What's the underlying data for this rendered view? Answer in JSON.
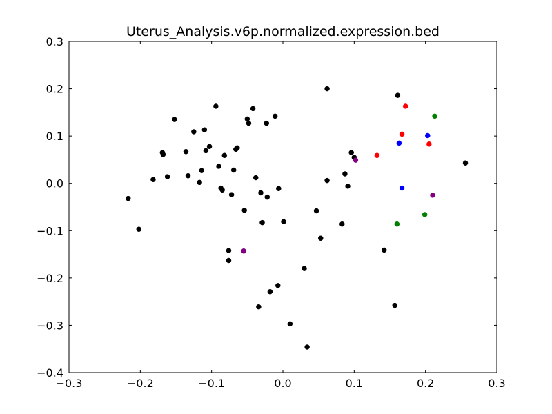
{
  "chart_data": {
    "type": "scatter",
    "title": "Uterus_Analysis.v6p.normalized.expression.bed",
    "xlabel": "",
    "ylabel": "",
    "xlim": [
      -0.3,
      0.3
    ],
    "ylim": [
      -0.4,
      0.3
    ],
    "x_ticks": [
      -0.3,
      -0.2,
      -0.1,
      0.0,
      0.1,
      0.2,
      0.3
    ],
    "y_ticks": [
      -0.4,
      -0.3,
      -0.2,
      -0.1,
      0.0,
      0.1,
      0.2,
      0.3
    ],
    "x_tick_labels": [
      "−0.3",
      "−0.2",
      "−0.1",
      "0.0",
      "0.1",
      "0.2",
      "0.3"
    ],
    "y_tick_labels": [
      "−0.4",
      "−0.3",
      "−0.2",
      "−0.1",
      "0.0",
      "0.1",
      "0.2",
      "0.3"
    ],
    "grid": false,
    "legend": "none",
    "series": [
      {
        "color": "#000000",
        "points": [
          [
            -0.217,
            -0.032
          ],
          [
            -0.202,
            -0.097
          ],
          [
            -0.182,
            0.008
          ],
          [
            -0.169,
            0.065
          ],
          [
            -0.168,
            0.061
          ],
          [
            -0.162,
            0.014
          ],
          [
            -0.152,
            0.135
          ],
          [
            -0.136,
            0.067
          ],
          [
            -0.133,
            0.016
          ],
          [
            -0.125,
            0.109
          ],
          [
            -0.117,
            0.002
          ],
          [
            -0.114,
            0.027
          ],
          [
            -0.11,
            0.113
          ],
          [
            -0.108,
            0.069
          ],
          [
            -0.103,
            0.078
          ],
          [
            -0.094,
            0.163
          ],
          [
            -0.09,
            0.036
          ],
          [
            -0.087,
            -0.01
          ],
          [
            -0.085,
            -0.014
          ],
          [
            -0.082,
            0.059
          ],
          [
            -0.076,
            -0.142
          ],
          [
            -0.076,
            -0.163
          ],
          [
            -0.072,
            -0.024
          ],
          [
            -0.069,
            0.028
          ],
          [
            -0.066,
            0.072
          ],
          [
            -0.064,
            0.075
          ],
          [
            -0.054,
            -0.057
          ],
          [
            -0.05,
            0.136
          ],
          [
            -0.048,
            0.127
          ],
          [
            -0.042,
            0.158
          ],
          [
            -0.038,
            0.012
          ],
          [
            -0.034,
            -0.261
          ],
          [
            -0.031,
            -0.02
          ],
          [
            -0.029,
            -0.083
          ],
          [
            -0.023,
            0.127
          ],
          [
            -0.022,
            -0.029
          ],
          [
            -0.018,
            -0.229
          ],
          [
            -0.011,
            0.142
          ],
          [
            -0.007,
            -0.216
          ],
          [
            -0.006,
            -0.011
          ],
          [
            0.001,
            -0.081
          ],
          [
            0.01,
            -0.297
          ],
          [
            0.03,
            -0.18
          ],
          [
            0.034,
            -0.346
          ],
          [
            0.047,
            -0.058
          ],
          [
            0.053,
            -0.116
          ],
          [
            0.062,
            0.2
          ],
          [
            0.062,
            0.006
          ],
          [
            0.083,
            -0.086
          ],
          [
            0.087,
            0.02
          ],
          [
            0.091,
            -0.006
          ],
          [
            0.096,
            0.065
          ],
          [
            0.1,
            0.055
          ],
          [
            0.142,
            -0.141
          ],
          [
            0.157,
            -0.258
          ],
          [
            0.161,
            0.186
          ],
          [
            0.256,
            0.043
          ]
        ]
      },
      {
        "color": "#ff0000",
        "points": [
          [
            0.132,
            0.059
          ],
          [
            0.167,
            0.104
          ],
          [
            0.172,
            0.163
          ],
          [
            0.205,
            0.083
          ]
        ]
      },
      {
        "color": "#0000ff",
        "points": [
          [
            0.163,
            0.085
          ],
          [
            0.167,
            -0.01
          ],
          [
            0.203,
            0.101
          ]
        ]
      },
      {
        "color": "#008000",
        "points": [
          [
            0.16,
            -0.086
          ],
          [
            0.199,
            -0.066
          ],
          [
            0.213,
            0.142
          ]
        ]
      },
      {
        "color": "#800080",
        "points": [
          [
            -0.055,
            -0.143
          ],
          [
            0.102,
            0.049
          ],
          [
            0.21,
            -0.025
          ]
        ]
      }
    ]
  }
}
